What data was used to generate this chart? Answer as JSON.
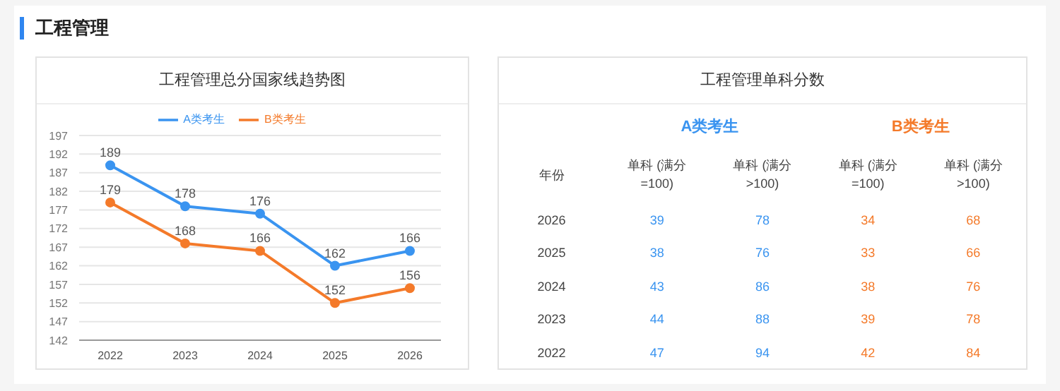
{
  "chart_data": [
    {
      "type": "line",
      "title": "工程管理",
      "subtitle": "工程管理总分国家线趋势图",
      "categories": [
        "2022",
        "2023",
        "2024",
        "2025",
        "2026"
      ],
      "series": [
        {
          "name": "A类考生",
          "color": "#3a94f0",
          "values": [
            189,
            178,
            176,
            162,
            166
          ]
        },
        {
          "name": "B类考生",
          "color": "#f47a2a",
          "values": [
            179,
            168,
            166,
            152,
            156
          ]
        }
      ],
      "ylim": [
        142,
        197
      ],
      "yticks": [
        142,
        147,
        152,
        157,
        162,
        167,
        172,
        177,
        182,
        187,
        192,
        197
      ],
      "grid": "y",
      "legend": "top",
      "marker": "circle",
      "line_style": "solid",
      "data_labels": true
    },
    {
      "type": "heatmap",
      "title": "工程管理单科分数",
      "ylabel": "年份",
      "annotations": [
        "A类考生",
        "B类考生"
      ],
      "categories": [
        "单科 (满分=100)",
        "单科 (满分>100)",
        "单科 (满分=100)",
        "单科 (满分>100)"
      ],
      "y_categories": [
        "2026",
        "2025",
        "2024",
        "2023",
        "2022"
      ],
      "colors": [
        "#3a94f0",
        "#3a94f0",
        "#f47a2a",
        "#f47a2a"
      ],
      "cells": [
        [
          39,
          78,
          34,
          68
        ],
        [
          38,
          76,
          33,
          66
        ],
        [
          43,
          86,
          38,
          76
        ],
        [
          44,
          88,
          39,
          78
        ],
        [
          47,
          94,
          42,
          84
        ]
      ],
      "data_labels": true
    }
  ]
}
